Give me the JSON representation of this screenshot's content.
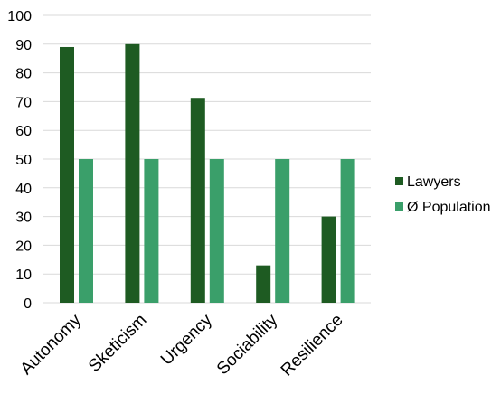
{
  "chart_data": {
    "type": "bar",
    "categories": [
      "Autonomy",
      "Sketicism",
      "Urgency",
      "Sociability",
      "Resilience"
    ],
    "series": [
      {
        "name": "Lawyers",
        "values": [
          89,
          90,
          71,
          13,
          30
        ]
      },
      {
        "name": "Ø Population",
        "values": [
          50,
          50,
          50,
          50,
          50
        ]
      }
    ],
    "ylim": [
      0,
      100
    ],
    "yticks": [
      0,
      10,
      20,
      30,
      40,
      50,
      60,
      70,
      80,
      90,
      100
    ],
    "grid": true,
    "legend_position": "right",
    "colors": {
      "Lawyers": "#1e5b22",
      "Ø Population": "#3a9f6a",
      "grid": "#d9d9d9"
    }
  }
}
